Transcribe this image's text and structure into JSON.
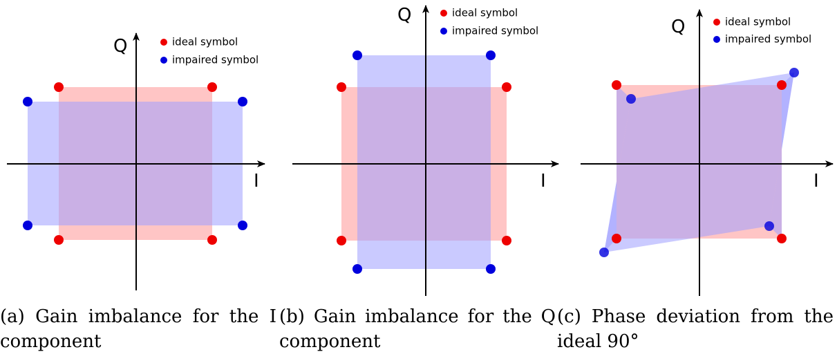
{
  "panels": [
    {
      "axis_q": "Q",
      "axis_i": "I",
      "legend": [
        "ideal symbol",
        "impaired symbol"
      ],
      "caption": "(a) Gain imbalance for the I component"
    },
    {
      "axis_q": "Q",
      "axis_i": "I",
      "legend": [
        "ideal symbol",
        "impaired symbol"
      ],
      "caption": "(b) Gain imbalance for the Q component"
    },
    {
      "axis_q": "Q",
      "axis_i": "I",
      "legend": [
        "ideal symbol",
        "impaired symbol"
      ],
      "caption": "(c) Phase deviation from the ideal 90°"
    }
  ]
}
